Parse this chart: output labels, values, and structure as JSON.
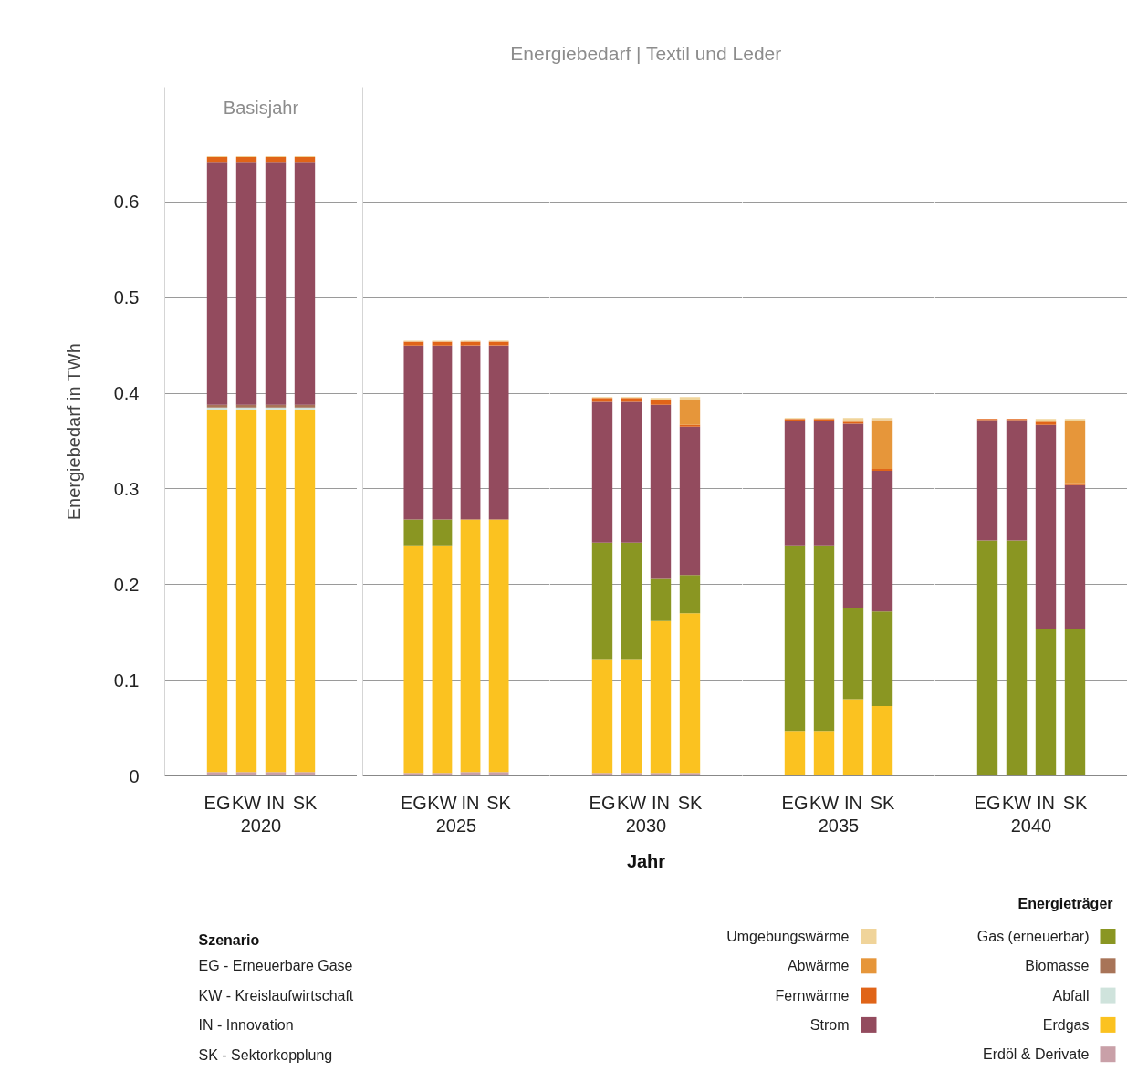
{
  "chart_data": [
    {
      "type": "bar",
      "stacked": true,
      "xlabel": "2020",
      "ylabel": "Energiebedarf in TWh",
      "legend_title": "Energieträger",
      "legend": "bottom right",
      "grid": "y",
      "categories": [
        "EG",
        "KW",
        "IN",
        "SK"
      ],
      "ylim": [
        0,
        0.72
      ],
      "yticks": [
        0,
        0.1,
        0.2,
        0.3,
        0.4,
        0.5,
        0.6
      ],
      "annotations": [
        "Basisjahr",
        "Jahr",
        "Szenario",
        "EG - Erneuerbare Gase",
        "KW - Kreislaufwirtschaft",
        "IN - Innovation",
        "SK - Sektorkopplung"
      ],
      "series": [
        {
          "name": "Erdöl & Derivate",
          "color": "#c9a0a8",
          "values": [
            0.004,
            0.004,
            0.004,
            0.004
          ]
        },
        {
          "name": "Erdgas",
          "color": "#fbc220",
          "values": [
            0.379,
            0.379,
            0.379,
            0.379
          ]
        },
        {
          "name": "Abfall",
          "color": "#cfe3dc",
          "values": [
            0.002,
            0.002,
            0.002,
            0.002
          ]
        },
        {
          "name": "Biomasse",
          "color": "#a87458",
          "values": [
            0.003,
            0.003,
            0.003,
            0.003
          ]
        },
        {
          "name": "Gas (erneuerbar)",
          "color": "#8a9622",
          "values": [
            0,
            0,
            0,
            0
          ]
        },
        {
          "name": "Strom",
          "color": "#934b5e",
          "values": [
            0.253,
            0.253,
            0.253,
            0.253
          ]
        },
        {
          "name": "Fernwärme",
          "color": "#e06418",
          "values": [
            0.006,
            0.006,
            0.006,
            0.006
          ]
        },
        {
          "name": "Abwärme",
          "color": "#e6963a",
          "values": [
            0,
            0,
            0,
            0
          ]
        },
        {
          "name": "Umgebungswärme",
          "color": "#f0d49a",
          "values": [
            0.001,
            0.001,
            0.001,
            0.001
          ]
        }
      ]
    },
    {
      "type": "bar",
      "stacked": true,
      "xlabel": "2025",
      "grid": "y",
      "tick_labels": "x",
      "categories": [
        "EG",
        "KW",
        "IN",
        "SK"
      ],
      "ylim": [
        0,
        0.72
      ],
      "yticks": [
        0,
        0.1,
        0.2,
        0.3,
        0.4,
        0.5,
        0.6
      ],
      "series": [
        {
          "color": "#c9a0a8",
          "values": [
            0.003,
            0.003,
            0.004,
            0.004
          ]
        },
        {
          "color": "#fbc220",
          "values": [
            0.238,
            0.238,
            0.264,
            0.264
          ]
        },
        {
          "color": "#cfe3dc",
          "values": [
            0,
            0,
            0,
            0
          ]
        },
        {
          "color": "#a87458",
          "values": [
            0,
            0,
            0,
            0
          ]
        },
        {
          "color": "#8a9622",
          "values": [
            0.027,
            0.027,
            0,
            0
          ]
        },
        {
          "color": "#934b5e",
          "values": [
            0.182,
            0.182,
            0.182,
            0.182
          ]
        },
        {
          "color": "#e06418",
          "values": [
            0.004,
            0.004,
            0.004,
            0.004
          ]
        },
        {
          "color": "#e6963a",
          "values": [
            0,
            0,
            0,
            0
          ]
        },
        {
          "color": "#f0d49a",
          "values": [
            0.001,
            0.001,
            0.001,
            0.001
          ]
        }
      ]
    },
    {
      "type": "bar",
      "stacked": true,
      "title": "Energiebedarf | Textil und Leder",
      "xlabel": "2030",
      "grid": "y",
      "tick_labels": "x",
      "categories": [
        "EG",
        "KW",
        "IN",
        "SK"
      ],
      "ylim": [
        0,
        0.72
      ],
      "yticks": [
        0,
        0.1,
        0.2,
        0.3,
        0.4,
        0.5,
        0.6
      ],
      "series": [
        {
          "color": "#c9a0a8",
          "values": [
            0.003,
            0.003,
            0.003,
            0.003
          ]
        },
        {
          "color": "#fbc220",
          "values": [
            0.119,
            0.119,
            0.159,
            0.167
          ]
        },
        {
          "color": "#cfe3dc",
          "values": [
            0,
            0,
            0,
            0
          ]
        },
        {
          "color": "#a87458",
          "values": [
            0,
            0,
            0,
            0
          ]
        },
        {
          "color": "#8a9622",
          "values": [
            0.122,
            0.122,
            0.044,
            0.04
          ]
        },
        {
          "color": "#934b5e",
          "values": [
            0.147,
            0.147,
            0.182,
            0.155
          ]
        },
        {
          "color": "#e06418",
          "values": [
            0.004,
            0.004,
            0.005,
            0.002
          ]
        },
        {
          "color": "#e6963a",
          "values": [
            0,
            0,
            0,
            0.026
          ]
        },
        {
          "color": "#f0d49a",
          "values": [
            0.001,
            0.001,
            0.002,
            0.003
          ]
        }
      ]
    },
    {
      "type": "bar",
      "stacked": true,
      "xlabel": "2035",
      "grid": "y",
      "tick_labels": "x",
      "categories": [
        "EG",
        "KW",
        "IN",
        "SK"
      ],
      "ylim": [
        0,
        0.72
      ],
      "yticks": [
        0,
        0.1,
        0.2,
        0.3,
        0.4,
        0.5,
        0.6
      ],
      "series": [
        {
          "color": "#c9a0a8",
          "values": [
            0.001,
            0.001,
            0.001,
            0.001
          ]
        },
        {
          "color": "#fbc220",
          "values": [
            0.046,
            0.046,
            0.079,
            0.072
          ]
        },
        {
          "color": "#cfe3dc",
          "values": [
            0,
            0,
            0,
            0
          ]
        },
        {
          "color": "#a87458",
          "values": [
            0,
            0,
            0,
            0
          ]
        },
        {
          "color": "#8a9622",
          "values": [
            0.194,
            0.194,
            0.095,
            0.099
          ]
        },
        {
          "color": "#934b5e",
          "values": [
            0.13,
            0.13,
            0.193,
            0.147
          ]
        },
        {
          "color": "#e06418",
          "values": [
            0.002,
            0.002,
            0.002,
            0.002
          ]
        },
        {
          "color": "#e6963a",
          "values": [
            0,
            0,
            0.002,
            0.051
          ]
        },
        {
          "color": "#f0d49a",
          "values": [
            0.001,
            0.001,
            0.002,
            0.002
          ]
        }
      ]
    },
    {
      "type": "bar",
      "stacked": true,
      "xlabel": "2040",
      "grid": "y",
      "tick_labels": "x",
      "categories": [
        "EG",
        "KW",
        "IN",
        "SK"
      ],
      "ylim": [
        0,
        0.72
      ],
      "yticks": [
        0,
        0.1,
        0.2,
        0.3,
        0.4,
        0.5,
        0.6
      ],
      "series": [
        {
          "color": "#c9a0a8",
          "values": [
            0,
            0,
            0,
            0
          ]
        },
        {
          "color": "#fbc220",
          "values": [
            0,
            0,
            0,
            0
          ]
        },
        {
          "color": "#cfe3dc",
          "values": [
            0,
            0,
            0,
            0
          ]
        },
        {
          "color": "#a87458",
          "values": [
            0,
            0,
            0,
            0
          ]
        },
        {
          "color": "#8a9622",
          "values": [
            0.246,
            0.246,
            0.154,
            0.153
          ]
        },
        {
          "color": "#934b5e",
          "values": [
            0.126,
            0.126,
            0.213,
            0.151
          ]
        },
        {
          "color": "#e06418",
          "values": [
            0.001,
            0.001,
            0.003,
            0.002
          ]
        },
        {
          "color": "#e6963a",
          "values": [
            0,
            0,
            0.001,
            0.065
          ]
        },
        {
          "color": "#f0d49a",
          "values": [
            0,
            0,
            0.002,
            0.002
          ]
        }
      ]
    }
  ]
}
